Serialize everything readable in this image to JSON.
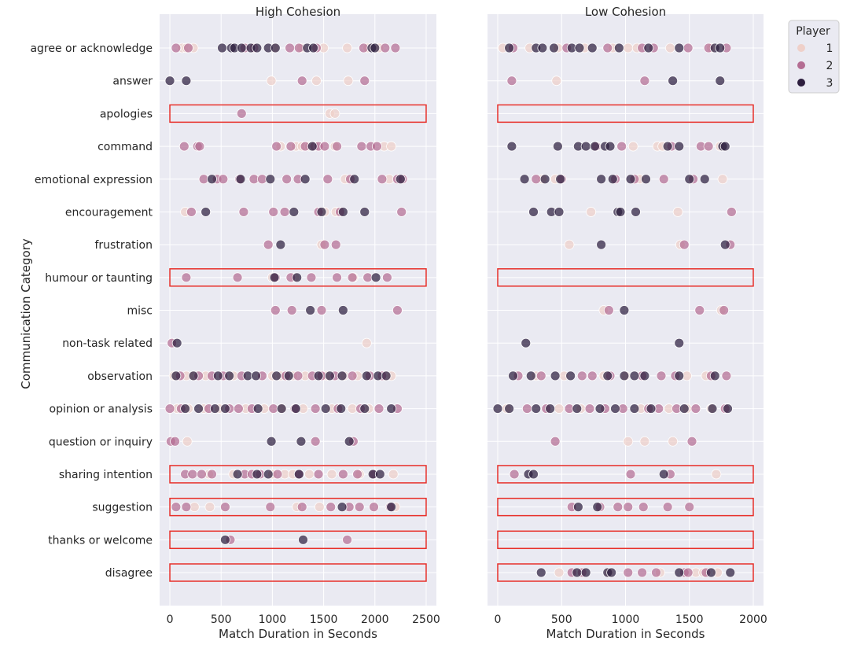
{
  "chart_data": {
    "type": "scatter",
    "ylabel": "Communication Category",
    "categories": [
      "agree or acknowledge",
      "answer",
      "apologies",
      "command",
      "emotional expression",
      "encouragement",
      "frustration",
      "humour or taunting",
      "misc",
      "non-task related",
      "observation",
      "opinion or analysis",
      "question or inquiry",
      "sharing intention",
      "suggestion",
      "thanks or welcome",
      "disagree"
    ],
    "legend": {
      "title": "Player",
      "placement": "outside-top-right",
      "entries": [
        "1",
        "2",
        "3"
      ]
    },
    "colors": {
      "1": "#efd0c9",
      "2": "#b46d93",
      "3": "#2d1e3e"
    },
    "highlight_color": "#e8302a",
    "panels": [
      {
        "title": "High Cohesion",
        "xlabel": "Match Duration in Seconds",
        "xlim": [
          -100,
          2600
        ],
        "xticks": [
          0,
          500,
          1000,
          1500,
          2000,
          2500
        ],
        "highlight_rows": [
          "apologies",
          "humour or taunting",
          "sharing intention",
          "suggestion",
          "thanks or welcome",
          "disagree"
        ],
        "highlight_span": [
          0,
          2500
        ],
        "points": {
          "agree or acknowledge": {
            "1": [
              120,
              160,
              230,
              1020,
              1280,
              1500,
              1730,
              1930,
              2040
            ],
            "2": [
              60,
              180,
              730,
              820,
              1170,
              1260,
              1430,
              1890,
              2100,
              2200
            ],
            "3": [
              510,
              600,
              630,
              700,
              790,
              850,
              960,
              1030,
              1340,
              1400,
              1970,
              2000
            ]
          },
          "answer": {
            "1": [
              990,
              1430,
              1740
            ],
            "2": [
              1290,
              1900
            ],
            "3": [
              0,
              160
            ]
          },
          "apologies": {
            "1": [
              1560,
              1610
            ],
            "2": [
              700
            ],
            "3": []
          },
          "command": {
            "1": [
              1080,
              1230,
              1290,
              1360,
              1610,
              2090,
              2160
            ],
            "2": [
              140,
              270,
              290,
              1040,
              1180,
              1320,
              1410,
              1450,
              1510,
              1630,
              1870,
              1960,
              2020
            ],
            "3": [
              1390
            ]
          },
          "emotional expression": {
            "1": [
              1710,
              2140
            ],
            "2": [
              330,
              460,
              520,
              680,
              820,
              900,
              1140,
              1250,
              1540,
              1760,
              2070,
              2220,
              2270
            ],
            "3": [
              410,
              690,
              980,
              1320,
              1800,
              2250
            ]
          },
          "encouragement": {
            "1": [
              150,
              1510,
              1620
            ],
            "2": [
              210,
              720,
              1010,
              1120,
              1450,
              1660,
              2260
            ],
            "3": [
              350,
              1210,
              1480,
              1690,
              1900
            ]
          },
          "frustration": {
            "1": [
              1480
            ],
            "2": [
              960,
              1510,
              1620
            ],
            "3": [
              1080
            ]
          },
          "humour or taunting": {
            "1": [
              1000,
              1220,
              1790
            ],
            "2": [
              160,
              660,
              1030,
              1180,
              1380,
              1630,
              1780,
              1930,
              2120
            ],
            "3": [
              1020,
              1240,
              2010
            ]
          },
          "misc": {
            "1": [],
            "2": [
              1030,
              1190,
              1480,
              2220
            ],
            "3": [
              1370,
              1690
            ]
          },
          "non-task related": {
            "1": [
              1920
            ],
            "2": [
              20
            ],
            "3": [
              70
            ]
          },
          "observation": {
            "1": [
              40,
              160,
              230,
              350,
              620,
              1000,
              1080,
              1200,
              1320,
              1530,
              1700,
              1830,
              2100,
              2160
            ],
            "2": [
              100,
              280,
              410,
              520,
              700,
              900,
              1130,
              1250,
              1390,
              1480,
              1610,
              1780,
              1950,
              2070
            ],
            "3": [
              60,
              230,
              470,
              580,
              760,
              840,
              1040,
              1160,
              1450,
              1560,
              1680,
              1920,
              2030,
              2110
            ]
          },
          "opinion or analysis": {
            "1": [
              70,
              180,
              330,
              480,
              740,
              920,
              1090,
              1300,
              1580,
              1780,
              1940
            ],
            "2": [
              0,
              110,
              380,
              580,
              670,
              800,
              1010,
              1220,
              1420,
              1640,
              1860,
              2040,
              2220
            ],
            "3": [
              150,
              280,
              440,
              540,
              860,
              1090,
              1230,
              1520,
              1670,
              1900,
              2160
            ]
          },
          "question or inquiry": {
            "1": [
              170
            ],
            "2": [
              10,
              50,
              1420,
              1790
            ],
            "3": [
              990,
              1280,
              1750
            ]
          },
          "sharing intention": {
            "1": [
              380,
              620,
              1000,
              1120,
              1200,
              1360,
              1580,
              1850,
              2180
            ],
            "2": [
              150,
              220,
              310,
              410,
              730,
              800,
              880,
              1050,
              1260,
              1450,
              1690,
              1830,
              1990
            ],
            "3": [
              660,
              850,
              960,
              1260,
              1980,
              2050
            ]
          },
          "suggestion": {
            "1": [
              240,
              390,
              1240,
              1460,
              2200
            ],
            "2": [
              60,
              160,
              540,
              980,
              1290,
              1570,
              1750,
              1850,
              1990,
              2150
            ],
            "3": [
              1680,
              2160
            ]
          },
          "thanks or welcome": {
            "1": [],
            "2": [
              590,
              1730
            ],
            "3": [
              540,
              1300
            ]
          },
          "disagree": {
            "1": [],
            "2": [],
            "3": []
          }
        }
      },
      {
        "title": "Low Cohesion",
        "xlabel": "Match Duration in Seconds",
        "xlim": [
          -80,
          2080
        ],
        "xticks": [
          0,
          500,
          1000,
          1500,
          2000
        ],
        "highlight_rows": [
          "apologies",
          "humour or taunting",
          "sharing intention",
          "suggestion",
          "thanks or welcome",
          "disagree"
        ],
        "highlight_span": [
          0,
          2000
        ],
        "points": {
          "agree or acknowledge": {
            "1": [
              40,
              250,
              470,
              680,
              900,
              1020,
              1090,
              1350,
              1670
            ],
            "2": [
              120,
              540,
              860,
              1130,
              1220,
              1490,
              1650,
              1790
            ],
            "3": [
              90,
              300,
              350,
              440,
              580,
              640,
              740,
              950,
              1180,
              1420,
              1700,
              1740
            ]
          },
          "answer": {
            "1": [
              460
            ],
            "2": [
              110,
              1150
            ],
            "3": [
              1370,
              1740
            ]
          },
          "apologies": {
            "1": [],
            "2": [],
            "3": []
          },
          "command": {
            "1": [
              1060,
              1250,
              1290,
              1740
            ],
            "2": [
              770,
              970,
              1360,
              1590,
              1650
            ],
            "3": [
              110,
              470,
              630,
              690,
              760,
              840,
              880,
              1330,
              1420,
              1760,
              1780
            ]
          },
          "emotional expression": {
            "1": [
              350,
              450,
              1110,
              1760
            ],
            "2": [
              300,
              500,
              920,
              1070,
              1300,
              1530
            ],
            "3": [
              210,
              370,
              490,
              810,
              900,
              1040,
              1160,
              1500,
              1620
            ]
          },
          "encouragement": {
            "1": [
              730,
              1410
            ],
            "2": [
              1830
            ],
            "3": [
              280,
              420,
              480,
              940,
              960,
              1080
            ]
          },
          "frustration": {
            "1": [
              560,
              1430
            ],
            "2": [
              1460,
              1820
            ],
            "3": [
              810,
              1780
            ]
          },
          "humour or taunting": {
            "1": [],
            "2": [],
            "3": []
          },
          "misc": {
            "1": [
              830,
              1750
            ],
            "2": [
              870,
              1580,
              1770
            ],
            "3": [
              990
            ]
          },
          "non-task related": {
            "1": [],
            "2": [],
            "3": [
              220,
              1420
            ]
          },
          "observation": {
            "1": [
              300,
              520,
              830,
              1000,
              1480,
              1630
            ],
            "2": [
              160,
              340,
              660,
              740,
              880,
              1130,
              1280,
              1390,
              1670,
              1790
            ],
            "3": [
              120,
              260,
              450,
              570,
              860,
              990,
              1070,
              1150,
              1420,
              1700
            ]
          },
          "opinion or analysis": {
            "1": [
              70,
              480,
              650,
              1120,
              1340,
              1480,
              1670
            ],
            "2": [
              230,
              380,
              560,
              720,
              840,
              980,
              1180,
              1260,
              1400,
              1550,
              1780
            ],
            "3": [
              0,
              90,
              300,
              410,
              620,
              800,
              920,
              1070,
              1200,
              1460,
              1680,
              1800
            ]
          },
          "question or inquiry": {
            "1": [
              1020,
              1150,
              1370
            ],
            "2": [
              450,
              1520
            ],
            "3": []
          },
          "sharing intention": {
            "1": [
              1710
            ],
            "2": [
              130,
              1040,
              1350
            ],
            "3": [
              240,
              280,
              1300
            ]
          },
          "suggestion": {
            "1": [],
            "2": [
              580,
              800,
              940,
              1020,
              1140,
              1330,
              1500
            ],
            "3": [
              630,
              780
            ]
          },
          "thanks or welcome": {
            "1": [],
            "2": [],
            "3": []
          },
          "disagree": {
            "1": [
              480,
              870,
              1270,
              1550,
              1610,
              1720
            ],
            "2": [
              580,
              660,
              1020,
              1130,
              1240,
              1460,
              1490,
              1630
            ],
            "3": [
              340,
              620,
              690,
              860,
              890,
              1420,
              1670,
              1820
            ]
          }
        }
      }
    ]
  }
}
